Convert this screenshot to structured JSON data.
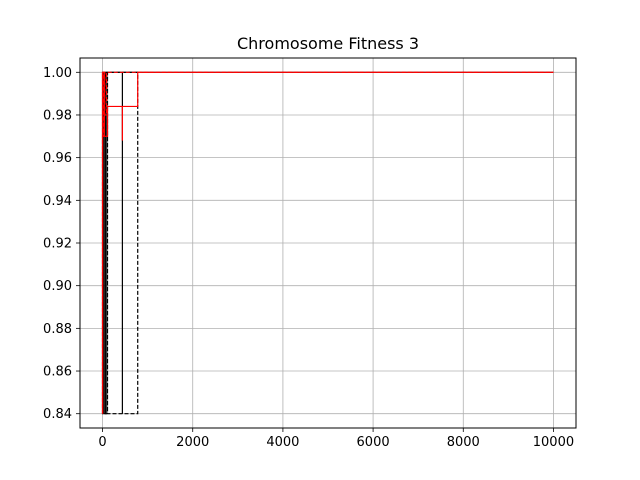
{
  "chart_data": {
    "type": "line",
    "title": "Chromosome Fitness 3",
    "xlabel": "",
    "ylabel": "",
    "xlim": [
      -500,
      10500
    ],
    "ylim": [
      0.8333,
      1.0067
    ],
    "xticks": [
      0,
      2000,
      4000,
      6000,
      8000,
      10000
    ],
    "xtick_labels": [
      "0",
      "2000",
      "4000",
      "6000",
      "8000",
      "10000"
    ],
    "yticks": [
      0.84,
      0.86,
      0.88,
      0.9,
      0.92,
      0.94,
      0.96,
      0.98,
      1.0
    ],
    "ytick_labels": [
      "0.84",
      "0.86",
      "0.88",
      "0.90",
      "0.92",
      "0.94",
      "0.96",
      "0.98",
      "1.00"
    ],
    "grid": true,
    "legend": "none",
    "series": [
      {
        "color": "#000000",
        "dash": "dashed",
        "x": [
          0,
          0,
          60,
          60,
          110,
          110,
          780,
          780,
          110,
          110,
          60,
          60,
          0,
          0
        ],
        "y": [
          0.84,
          1.0,
          1.0,
          0.84,
          0.84,
          1.0,
          1.0,
          0.84,
          0.84,
          1.0,
          1.0,
          0.84,
          0.84,
          1.0
        ]
      },
      {
        "color": "#000000",
        "dash": "solid",
        "x": [
          0,
          0,
          30,
          30,
          80,
          80,
          440,
          440,
          440,
          10000
        ],
        "y": [
          0.84,
          1.0,
          1.0,
          0.84,
          0.84,
          1.0,
          1.0,
          0.84,
          1.0,
          1.0
        ]
      },
      {
        "color": "#ff0000",
        "dash": "dashed",
        "x": [
          0,
          0,
          20,
          20,
          50,
          50,
          90,
          90,
          10000
        ],
        "y": [
          0.84,
          0.97,
          0.97,
          1.0,
          1.0,
          0.98,
          0.98,
          1.0,
          1.0
        ]
      },
      {
        "color": "#ff0000",
        "dash": "solid",
        "x": [
          0,
          0,
          40,
          40,
          110,
          110,
          440,
          440,
          440,
          780,
          780,
          10000
        ],
        "y": [
          0.84,
          1.0,
          1.0,
          0.97,
          0.97,
          0.984,
          0.984,
          0.968,
          0.984,
          0.984,
          1.0,
          1.0
        ]
      }
    ]
  }
}
